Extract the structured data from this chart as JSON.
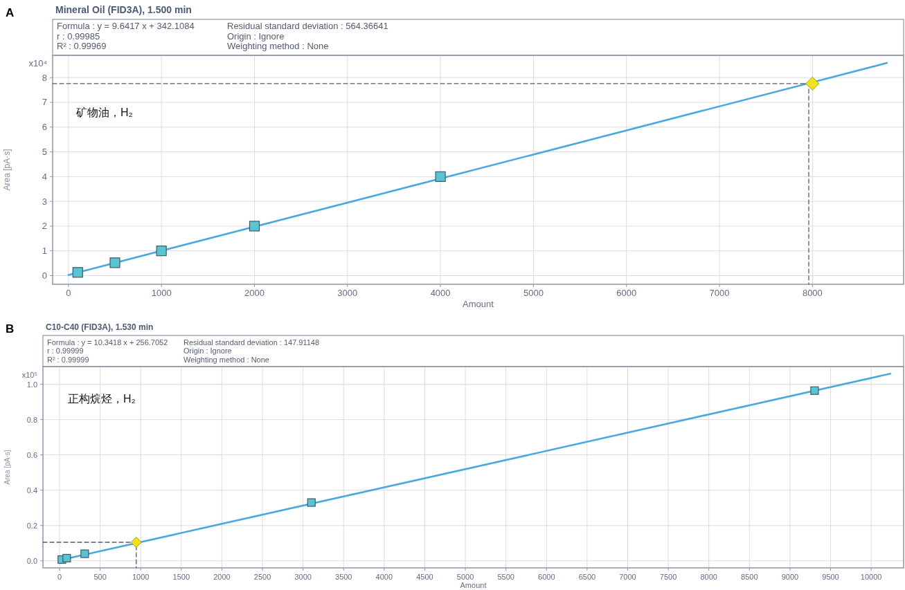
{
  "chart_data": [
    {
      "type": "scatter",
      "title": "Mineral Oil (FID3A), 1.500 min",
      "xlabel": "Amount",
      "ylabel": "Area [pA·s]",
      "annotations": [
        "Formula : y = 9.6417 x + 342.1084",
        "r : 0.99985",
        "R² : 0.99969",
        "Residual standard deviation : 564.36641",
        "Origin : Ignore",
        "Weighting method : None",
        "x10⁴",
        "矿物油，H₂",
        "A"
      ],
      "xlim": [
        -170,
        8980
      ],
      "xticks": [
        0,
        1000,
        2000,
        3000,
        4000,
        5000,
        6000,
        7000,
        8000
      ],
      "ylim": [
        -0.35,
        8.9
      ],
      "yticks": [
        0,
        1,
        2,
        3,
        4,
        5,
        6,
        7,
        8
      ],
      "grid": true,
      "series": [
        {
          "type": "line",
          "color": "#4aa8e0",
          "marker": "none",
          "line_style": "solid",
          "x": [
            0,
            8800
          ],
          "values": [
            0.03,
            8.59
          ]
        },
        {
          "type": "line",
          "color": "#555a6e",
          "marker": "none",
          "line_style": "dashed",
          "x": [
            -170,
            7960,
            7960
          ],
          "values": [
            7.76,
            7.76,
            -0.35
          ]
        },
        {
          "type": "scatter",
          "color": "#5bc4d4",
          "marker": "square",
          "x": [
            100,
            500,
            1000,
            2000,
            4000
          ],
          "values": [
            0.13,
            0.52,
            1.0,
            2.0,
            4.0
          ]
        },
        {
          "type": "scatter",
          "color": "#f2e21a",
          "marker": "diamond",
          "x": [
            8000
          ],
          "values": [
            7.76
          ]
        }
      ]
    },
    {
      "type": "scatter",
      "title": "C10-C40 (FID3A), 1.530 min",
      "xlabel": "Amount",
      "ylabel": "Area [pA·s]",
      "annotations": [
        "Formula : y = 10.3418 x + 256.7052",
        "r : 0.99999",
        "R² : 0.99999",
        "Residual standard deviation : 147.91148",
        "Origin : Ignore",
        "Weighting method : None",
        "x10⁵",
        "正构烷烃，H₂",
        "B"
      ],
      "xlim": [
        -205,
        10400
      ],
      "xticks": [
        0,
        500,
        1000,
        1500,
        2000,
        2500,
        3000,
        3500,
        4000,
        4500,
        5000,
        5500,
        6000,
        6500,
        7000,
        7500,
        8000,
        8500,
        9000,
        9500,
        10000
      ],
      "ylim": [
        -0.04,
        1.1
      ],
      "yticks": [
        {
          "value": 0,
          "label": "0.0"
        },
        {
          "value": 0.2,
          "label": "0.2"
        },
        {
          "value": 0.4,
          "label": "0.4"
        },
        {
          "value": 0.6,
          "label": "0.6"
        },
        {
          "value": 0.8,
          "label": "0.8"
        },
        {
          "value": 1,
          "label": "1.0"
        }
      ],
      "grid": true,
      "series": [
        {
          "type": "line",
          "color": "#4aa8e0",
          "marker": "none",
          "line_style": "solid",
          "x": [
            0,
            10236
          ],
          "values": [
            0.003,
            1.06
          ]
        },
        {
          "type": "line",
          "color": "#555a6e",
          "marker": "none",
          "line_style": "dashed",
          "x": [
            -205,
            945,
            945
          ],
          "values": [
            0.105,
            0.105,
            -0.04
          ]
        },
        {
          "type": "scatter",
          "color": "#5bc4d4",
          "marker": "square",
          "x": [
            28,
            88,
            310,
            3103,
            9303
          ],
          "values": [
            0.007,
            0.015,
            0.04,
            0.33,
            0.964
          ]
        },
        {
          "type": "scatter",
          "color": "#f2e21a",
          "marker": "diamond",
          "x": [
            945
          ],
          "values": [
            0.105
          ]
        }
      ]
    }
  ]
}
